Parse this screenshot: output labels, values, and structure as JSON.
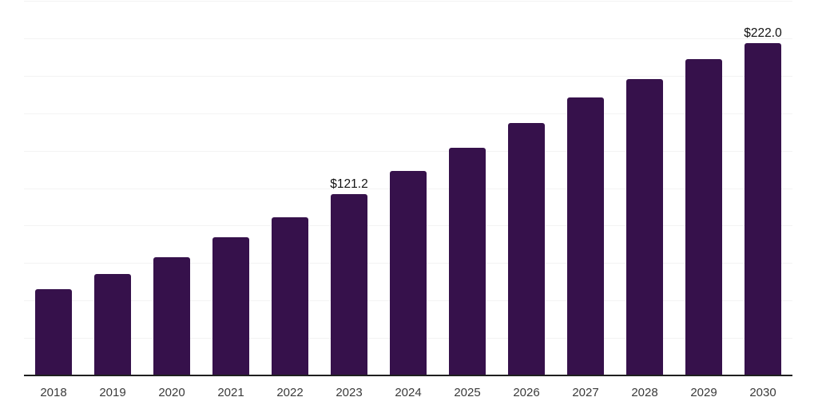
{
  "chart_data": {
    "type": "bar",
    "title": "",
    "xlabel": "",
    "ylabel": "",
    "categories": [
      "2018",
      "2019",
      "2020",
      "2021",
      "2022",
      "2023",
      "2024",
      "2025",
      "2026",
      "2027",
      "2028",
      "2029",
      "2030"
    ],
    "values": [
      57.5,
      67.7,
      78.9,
      92.1,
      105.6,
      121.2,
      136.5,
      151.9,
      168.4,
      185.4,
      197.8,
      211.0,
      222.0
    ],
    "data_labels": [
      "",
      "",
      "",
      "",
      "",
      "$121.2",
      "",
      "",
      "",
      "",
      "",
      "",
      "$222.0"
    ],
    "ylim": [
      0,
      250
    ],
    "gridline_step": 25,
    "grid": "horizontal",
    "legend_position": "none",
    "y_tick_labels_visible": false
  },
  "colors": {
    "bar": "#36114B",
    "gridline": "#f3f3f3",
    "axis_line": "#1f1f1f",
    "tick_label": "#3a3a3a",
    "data_label": "#111111",
    "background": "#ffffff"
  }
}
